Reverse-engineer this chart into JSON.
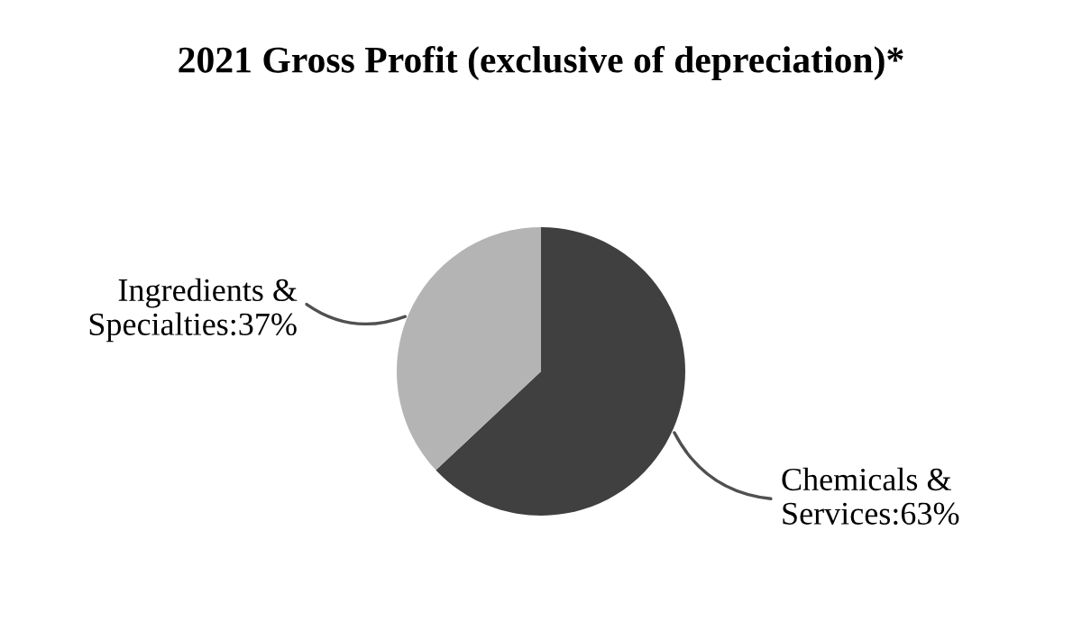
{
  "chart_data": {
    "type": "pie",
    "title": "2021 Gross Profit (exclusive of depreciation)*",
    "categories": [
      "Chemicals & Services",
      "Ingredients & Specialties"
    ],
    "values": [
      63,
      37
    ],
    "value_labels": [
      "63%",
      "37%"
    ],
    "colors": [
      "#404040",
      "#b4b4b4"
    ]
  }
}
